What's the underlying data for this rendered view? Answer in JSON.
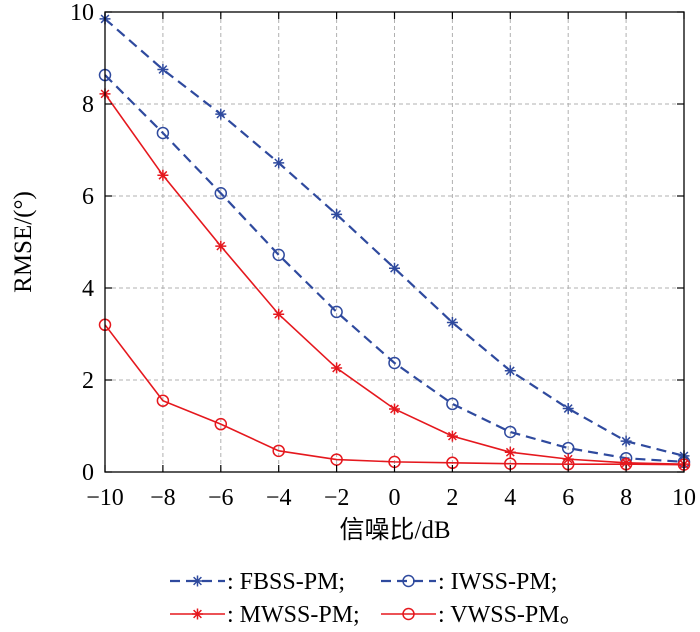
{
  "chart_data": {
    "type": "line",
    "xlabel": "信噪比/dB",
    "ylabel": "RMSE/(°)",
    "xlim": [
      -10,
      10
    ],
    "ylim": [
      0,
      10
    ],
    "x": [
      -10,
      -8,
      -6,
      -4,
      -2,
      0,
      2,
      4,
      6,
      8,
      10
    ],
    "xticks": [
      -10,
      -8,
      -6,
      -4,
      -2,
      0,
      2,
      4,
      6,
      8,
      10
    ],
    "xtick_labels": [
      "−10",
      "−8",
      "−6",
      "−4",
      "−2",
      "0",
      "2",
      "4",
      "6",
      "8",
      "10"
    ],
    "yticks": [
      0,
      2,
      4,
      6,
      8,
      10
    ],
    "ytick_labels": [
      "0",
      "2",
      "4",
      "6",
      "8",
      "10"
    ],
    "grid": true,
    "legend_position": "bottom",
    "series": [
      {
        "name": "FBSS-PM",
        "legend_prefix": ": ",
        "legend_suffix": ";",
        "color": "#2f4a9e",
        "line_style": "dashed",
        "marker": "asterisk",
        "values": [
          9.85,
          8.75,
          7.78,
          6.72,
          5.6,
          4.43,
          3.25,
          2.2,
          1.38,
          0.67,
          0.35
        ]
      },
      {
        "name": "IWSS-PM",
        "legend_prefix": ": ",
        "legend_suffix": ";",
        "color": "#2f4a9e",
        "line_style": "dashed",
        "marker": "circle",
        "values": [
          8.63,
          7.37,
          6.06,
          4.72,
          3.48,
          2.37,
          1.48,
          0.87,
          0.52,
          0.3,
          0.22
        ]
      },
      {
        "name": "MWSS-PM",
        "legend_prefix": ": ",
        "legend_suffix": ";",
        "color": "#e5181e",
        "line_style": "solid",
        "marker": "asterisk",
        "values": [
          8.22,
          6.45,
          4.91,
          3.43,
          2.26,
          1.37,
          0.78,
          0.43,
          0.28,
          0.2,
          0.17
        ]
      },
      {
        "name": "VWSS-PM",
        "legend_prefix": ": ",
        "legend_suffix": "。",
        "color": "#e5181e",
        "line_style": "solid",
        "marker": "circle",
        "values": [
          3.2,
          1.55,
          1.04,
          0.46,
          0.27,
          0.22,
          0.2,
          0.18,
          0.17,
          0.17,
          0.16
        ]
      }
    ]
  }
}
